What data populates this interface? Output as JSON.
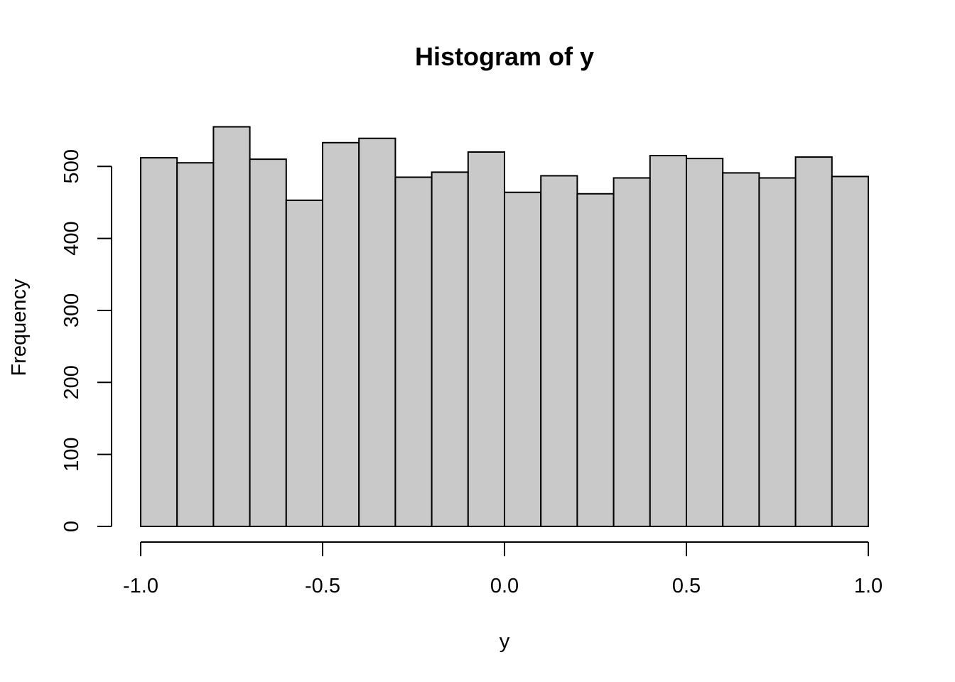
{
  "chart_data": {
    "type": "bar",
    "title": "Histogram of y",
    "xlabel": "y",
    "ylabel": "Frequency",
    "bin_edges": [
      -1.0,
      -0.9,
      -0.8,
      -0.7,
      -0.6,
      -0.5,
      -0.4,
      -0.3,
      -0.2,
      -0.1,
      0.0,
      0.1,
      0.2,
      0.3,
      0.4,
      0.5,
      0.6,
      0.7,
      0.8,
      0.9,
      1.0
    ],
    "values": [
      512,
      505,
      555,
      510,
      453,
      533,
      539,
      485,
      492,
      520,
      464,
      487,
      462,
      484,
      515,
      511,
      491,
      484,
      513,
      486
    ],
    "x_ticks": [
      -1.0,
      -0.5,
      0.0,
      0.5,
      1.0
    ],
    "x_tick_labels": [
      "-1.0",
      "-0.5",
      "0.0",
      "0.5",
      "1.0"
    ],
    "y_ticks": [
      0,
      100,
      200,
      300,
      400,
      500
    ],
    "y_tick_labels": [
      "0",
      "100",
      "200",
      "300",
      "400",
      "500"
    ],
    "xlim": [
      -1.0,
      1.0
    ],
    "ylim": [
      0,
      555
    ],
    "bar_color": "#C9C9C9",
    "edge_color": "#000000",
    "grid": false,
    "legend": "none"
  }
}
